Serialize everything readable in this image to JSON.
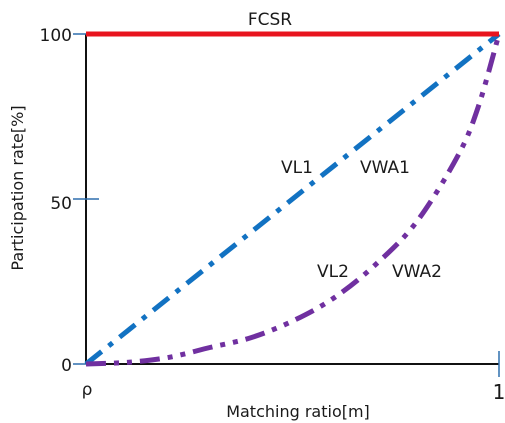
{
  "chart_data": {
    "type": "line",
    "title": "",
    "xlabel": "Matching ratio[m]",
    "ylabel": "Participation rate[%]",
    "x_ticks": [
      "ρ",
      "1"
    ],
    "y_ticks": [
      "0",
      "50",
      "100"
    ],
    "xlim": [
      0,
      1
    ],
    "ylim": [
      0,
      100
    ],
    "grid": false,
    "series": [
      {
        "name": "FCSR",
        "color": "#e8141e",
        "style": "solid",
        "x": [
          0,
          1
        ],
        "values": [
          100,
          100
        ]
      },
      {
        "name": "VL1 VWA1",
        "name_parts": [
          "VL1",
          "VWA1"
        ],
        "color": "#1272c2",
        "style": "dash-dot",
        "x": [
          0,
          1
        ],
        "values": [
          0,
          100
        ]
      },
      {
        "name": "VL2 VWA2",
        "name_parts": [
          "VL2",
          "VWA2"
        ],
        "color": "#7030a0",
        "style": "dash-dot-dot",
        "x": [
          0,
          0.1,
          0.2,
          0.3,
          0.4,
          0.5,
          0.6,
          0.7,
          0.8,
          0.9,
          0.95,
          1
        ],
        "values": [
          0,
          0.5,
          2,
          5,
          8,
          13,
          20,
          30,
          43,
          63,
          78,
          100
        ]
      }
    ]
  }
}
